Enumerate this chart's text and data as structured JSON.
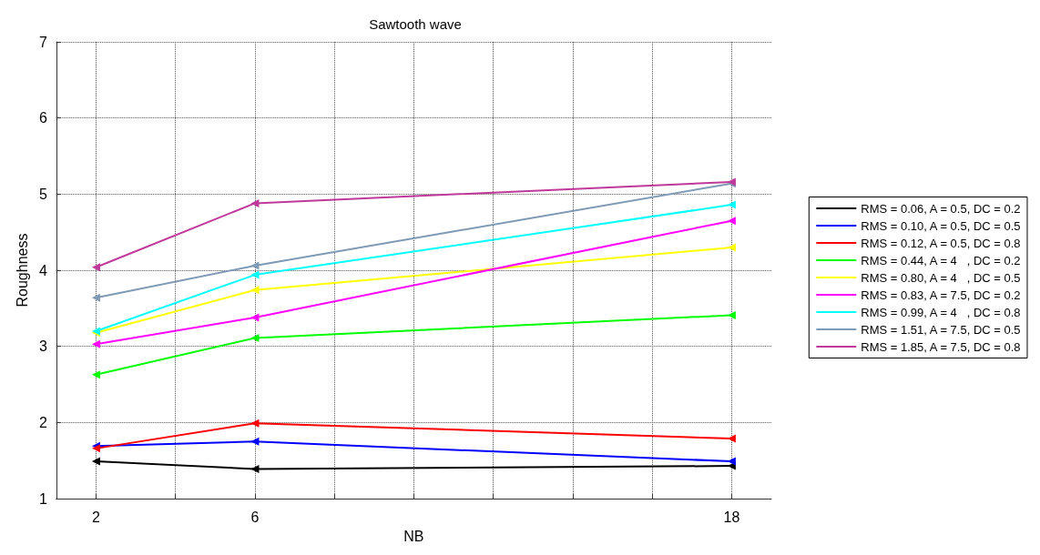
{
  "chart_data": {
    "type": "line",
    "title": "Sawtooth wave",
    "xlabel": "NB",
    "ylabel": "Roughness",
    "x": [
      2,
      6,
      18
    ],
    "xlim": [
      1,
      19
    ],
    "xticks": [
      {
        "value": 2,
        "label": "2"
      },
      {
        "value": 4,
        "label": null
      },
      {
        "value": 6,
        "label": "6"
      },
      {
        "value": 8,
        "label": null
      },
      {
        "value": 10,
        "label": null
      },
      {
        "value": 12,
        "label": null
      },
      {
        "value": 14,
        "label": null
      },
      {
        "value": 16,
        "label": null
      },
      {
        "value": 18,
        "label": "18"
      }
    ],
    "ylim": [
      1,
      7
    ],
    "yticks": [
      1,
      2,
      3,
      4,
      5,
      6,
      7
    ],
    "grid": true,
    "legend": "right",
    "marker": "triangle",
    "line_style": "solid",
    "series": [
      {
        "name": "RMS = 0.06, A = 0.5, DC = 0.2",
        "color": "#000000",
        "values": [
          1.49,
          1.39,
          1.43
        ]
      },
      {
        "name": "RMS = 0.10, A = 0.5, DC = 0.5",
        "color": "#0000ff",
        "values": [
          1.69,
          1.75,
          1.49
        ]
      },
      {
        "name": "RMS = 0.12, A = 0.5, DC = 0.8",
        "color": "#ff0000",
        "values": [
          1.66,
          1.99,
          1.79
        ]
      },
      {
        "name": "RMS = 0.44, A = 4   , DC = 0.2",
        "color": "#00ff00",
        "values": [
          2.63,
          3.11,
          3.41
        ]
      },
      {
        "name": "RMS = 0.80, A = 4   , DC = 0.5",
        "color": "#ffff00",
        "values": [
          3.18,
          3.74,
          4.3
        ]
      },
      {
        "name": "RMS = 0.83, A = 7.5, DC = 0.2",
        "color": "#ff00ff",
        "values": [
          3.03,
          3.38,
          4.65
        ]
      },
      {
        "name": "RMS = 0.99, A = 4   , DC = 0.8",
        "color": "#00ffff",
        "values": [
          3.2,
          3.94,
          4.86
        ]
      },
      {
        "name": "RMS = 1.51, A = 7.5, DC = 0.5",
        "color": "#7f9ab5",
        "values": [
          3.64,
          4.06,
          5.14
        ]
      },
      {
        "name": "RMS = 1.85, A = 7.5, DC = 0.8",
        "color": "#c0399a",
        "values": [
          4.04,
          4.88,
          5.16
        ]
      }
    ]
  }
}
